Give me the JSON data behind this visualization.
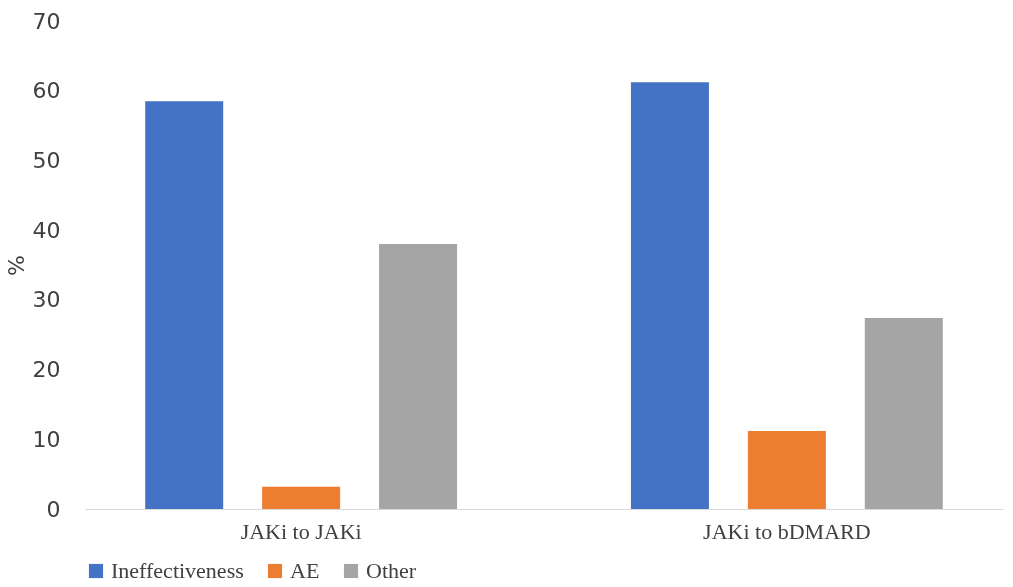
{
  "chart_data": {
    "type": "bar",
    "ylabel": "%",
    "categories": [
      "JAKi to JAKi",
      "JAKi to bDMARD"
    ],
    "series": [
      {
        "name": "Ineffectiveness",
        "color": "#4472c4",
        "values": [
          58.5,
          61.2
        ]
      },
      {
        "name": "AE",
        "color": "#ed7d31",
        "values": [
          3.2,
          11.2
        ]
      },
      {
        "name": "Other",
        "color": "#a5a5a5",
        "values": [
          38.0,
          27.4
        ]
      }
    ],
    "ylim": [
      0,
      70
    ],
    "yticks": [
      0,
      10,
      20,
      30,
      40,
      50,
      60,
      70
    ],
    "grid": false,
    "legend": "bottom"
  }
}
